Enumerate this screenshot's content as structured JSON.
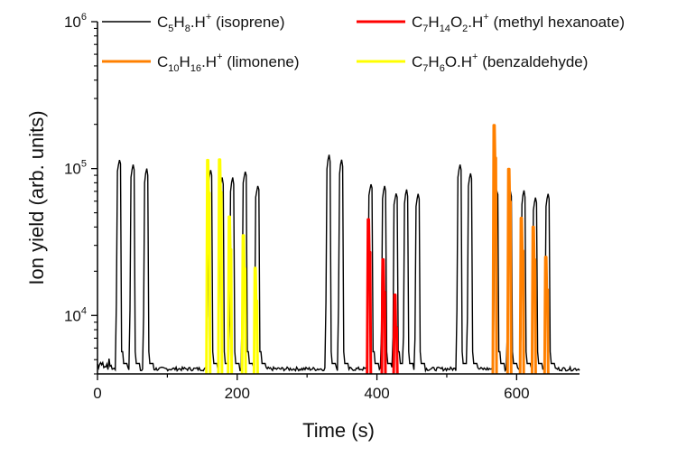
{
  "chart_data": {
    "type": "line",
    "title": "",
    "xlabel": "Time (s)",
    "ylabel": "Ion yield (arb. units)",
    "xlim": [
      0,
      690
    ],
    "ylim": [
      4000,
      1000000
    ],
    "yscale": "log",
    "xticks": [
      0,
      200,
      400,
      600
    ],
    "xtick_labels": [
      "0",
      "200",
      "400",
      "600"
    ],
    "yticks": [
      10000,
      100000,
      1000000
    ],
    "ytick_labels": [
      {
        "base": "10",
        "exp": "4"
      },
      {
        "base": "10",
        "exp": "5"
      },
      {
        "base": "10",
        "exp": "6"
      }
    ],
    "grid": false,
    "legend_placement": "top",
    "baseline": 4200,
    "series": [
      {
        "name": "C5H8.H+ (isoprene)",
        "color": "#000000",
        "peak_shape": "wide",
        "peaks": [
          [
            32,
            120000
          ],
          [
            51,
            109000
          ],
          [
            70,
            100000
          ],
          [
            162,
            100000
          ],
          [
            178,
            87000
          ],
          [
            193,
            87000
          ],
          [
            212,
            100000
          ],
          [
            230,
            80000
          ],
          [
            331,
            124000
          ],
          [
            349,
            115000
          ],
          [
            392,
            82000
          ],
          [
            411,
            78000
          ],
          [
            428,
            71000
          ],
          [
            442,
            72000
          ],
          [
            459,
            69000
          ],
          [
            519,
            109000
          ],
          [
            534,
            95000
          ],
          [
            572,
            74000
          ],
          [
            591,
            72000
          ],
          [
            610,
            71000
          ],
          [
            627,
            65000
          ],
          [
            645,
            69000
          ]
        ]
      },
      {
        "name": "C7H14O2.H+ (methyl hexanoate)",
        "color": "#ff0000",
        "peak_shape": "narrow",
        "peaks": [
          [
            388,
            45000
          ],
          [
            409,
            24000
          ],
          [
            426,
            13800
          ]
        ]
      },
      {
        "name": "C10H16.H+ (limonene)",
        "color": "#ff8000",
        "peak_shape": "narrow",
        "peaks": [
          [
            568,
            197000
          ],
          [
            589,
            99000
          ],
          [
            607,
            46000
          ],
          [
            624,
            40000
          ],
          [
            642,
            25000
          ]
        ]
      },
      {
        "name": "C7H6O.H+ (benzaldehyde)",
        "color": "#ffff00",
        "peak_shape": "narrow",
        "peaks": [
          [
            158,
            114000
          ],
          [
            175,
            115000
          ],
          [
            189,
            47000
          ],
          [
            209,
            35000
          ],
          [
            226,
            21000
          ]
        ]
      }
    ]
  }
}
